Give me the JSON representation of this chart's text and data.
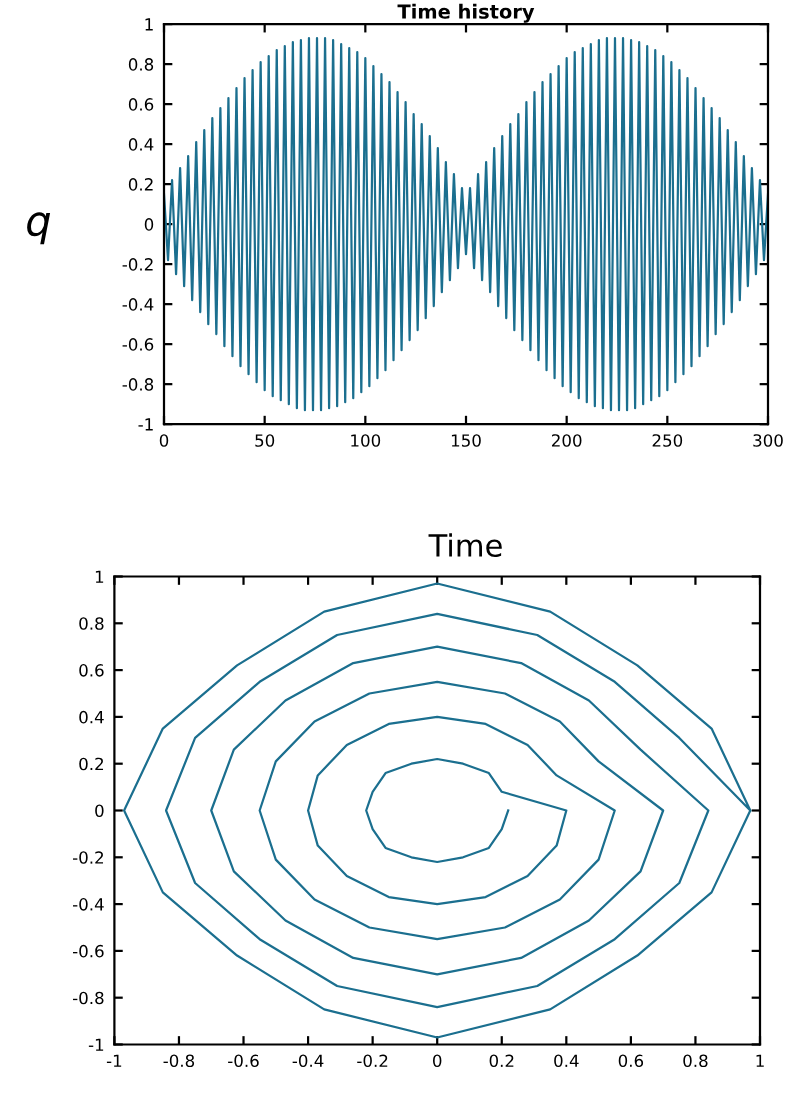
{
  "chart_data": [
    {
      "type": "line",
      "title": "Time history",
      "xlabel": "Time",
      "ylabel": "q",
      "xlim": [
        0,
        300
      ],
      "ylim": [
        -1,
        1
      ],
      "xticks": [
        0,
        50,
        100,
        150,
        200,
        250,
        300
      ],
      "yticks": [
        -1,
        -0.8,
        -0.6,
        -0.4,
        -0.2,
        0,
        0.2,
        0.4,
        0.6,
        0.8,
        1
      ],
      "x": [
        0,
        2,
        4,
        6,
        8,
        10,
        12,
        14,
        16,
        18,
        20,
        22,
        24,
        26,
        28,
        30,
        32,
        34,
        36,
        38,
        40,
        42,
        44,
        46,
        48,
        50,
        52,
        54,
        56,
        58,
        60,
        62,
        64,
        66,
        68,
        70,
        72,
        74,
        76,
        78,
        80,
        82,
        84,
        86,
        88,
        90,
        92,
        94,
        96,
        98,
        100,
        102,
        104,
        106,
        108,
        110,
        112,
        114,
        116,
        118,
        120,
        122,
        124,
        126,
        128,
        130,
        132,
        134,
        136,
        138,
        140,
        142,
        144,
        146,
        148,
        150,
        152,
        154,
        156,
        158,
        160,
        162,
        164,
        166,
        168,
        170,
        172,
        174,
        176,
        178,
        180,
        182,
        184,
        186,
        188,
        190,
        192,
        194,
        196,
        198,
        200,
        202,
        204,
        206,
        208,
        210,
        212,
        214,
        216,
        218,
        220,
        222,
        224,
        226,
        228,
        230,
        232,
        234,
        236,
        238,
        240,
        242,
        244,
        246,
        248,
        250,
        252,
        254,
        256,
        258,
        260,
        262,
        264,
        266,
        268,
        270,
        272,
        274,
        276,
        278,
        280,
        282,
        284,
        286,
        288,
        290,
        292,
        294,
        296,
        298,
        300
      ],
      "series": [
        {
          "color": "#1b6f8f",
          "values": [
            0.15,
            -0.18,
            0.22,
            -0.25,
            0.28,
            -0.31,
            0.34,
            -0.38,
            0.41,
            -0.44,
            0.47,
            -0.5,
            0.53,
            -0.55,
            0.58,
            -0.61,
            0.63,
            -0.66,
            0.68,
            -0.71,
            0.73,
            -0.75,
            0.77,
            -0.79,
            0.81,
            -0.83,
            0.84,
            -0.86,
            0.87,
            -0.88,
            0.89,
            -0.9,
            0.91,
            -0.92,
            0.92,
            -0.93,
            0.93,
            -0.93,
            0.93,
            -0.93,
            0.93,
            -0.92,
            0.92,
            -0.91,
            0.9,
            -0.89,
            0.88,
            -0.87,
            0.86,
            -0.84,
            0.83,
            -0.81,
            0.79,
            -0.77,
            0.75,
            -0.73,
            0.71,
            -0.68,
            0.66,
            -0.63,
            0.61,
            -0.58,
            0.55,
            -0.53,
            0.5,
            -0.47,
            0.44,
            -0.41,
            0.38,
            -0.34,
            0.31,
            -0.28,
            0.25,
            -0.22,
            0.18,
            -0.15,
            0.18,
            -0.22,
            0.25,
            -0.28,
            0.31,
            -0.34,
            0.38,
            -0.41,
            0.44,
            -0.47,
            0.5,
            -0.53,
            0.55,
            -0.58,
            0.61,
            -0.63,
            0.66,
            -0.68,
            0.71,
            -0.73,
            0.75,
            -0.77,
            0.79,
            -0.81,
            0.83,
            -0.84,
            0.86,
            -0.87,
            0.88,
            -0.89,
            0.9,
            -0.91,
            0.92,
            -0.92,
            0.93,
            -0.93,
            0.93,
            -0.93,
            0.93,
            -0.93,
            0.92,
            -0.92,
            0.91,
            -0.9,
            0.89,
            -0.88,
            0.87,
            -0.86,
            0.84,
            -0.83,
            0.81,
            -0.79,
            0.77,
            -0.75,
            0.73,
            -0.71,
            0.68,
            -0.66,
            0.63,
            -0.61,
            0.58,
            -0.55,
            0.53,
            -0.5,
            0.47,
            -0.44,
            0.41,
            -0.38,
            0.34,
            -0.31,
            0.28,
            -0.25,
            0.22,
            -0.18,
            0.15
          ]
        }
      ]
    },
    {
      "type": "line",
      "xlim": [
        -1,
        1
      ],
      "ylim": [
        -1,
        1
      ],
      "xticks": [
        -1,
        -0.8,
        -0.6,
        -0.4,
        -0.2,
        0,
        0.2,
        0.4,
        0.6,
        0.8,
        1
      ],
      "yticks": [
        -1,
        -0.8,
        -0.6,
        -0.4,
        -0.2,
        0,
        0.2,
        0.4,
        0.6,
        0.8,
        1
      ],
      "x": [
        0.22,
        0.2,
        0.16,
        0.08,
        0,
        -0.08,
        -0.16,
        -0.2,
        -0.22,
        -0.2,
        -0.16,
        -0.08,
        0,
        0.08,
        0.16,
        0.2,
        0.4,
        0.37,
        0.28,
        0.15,
        0,
        -0.15,
        -0.28,
        -0.37,
        -0.4,
        -0.37,
        -0.28,
        -0.15,
        0,
        0.15,
        0.28,
        0.37,
        0.55,
        0.5,
        0.38,
        0.21,
        0,
        -0.21,
        -0.38,
        -0.5,
        -0.55,
        -0.5,
        -0.38,
        -0.21,
        0,
        0.21,
        0.38,
        0.5,
        0.7,
        0.63,
        0.47,
        0.26,
        0,
        -0.26,
        -0.47,
        -0.63,
        -0.7,
        -0.63,
        -0.47,
        -0.26,
        0,
        0.26,
        0.47,
        0.63,
        0.84,
        0.75,
        0.55,
        0.31,
        0,
        -0.31,
        -0.55,
        -0.75,
        -0.84,
        -0.75,
        -0.55,
        -0.31,
        0,
        0.31,
        0.55,
        0.75,
        0.97,
        0.85,
        0.62,
        0.35,
        0,
        -0.35,
        -0.62,
        -0.85,
        -0.97,
        -0.85,
        -0.62,
        -0.35,
        0,
        0.35,
        0.62,
        0.85,
        0.97
      ],
      "series": [
        {
          "color": "#1b6f8f",
          "values": [
            0,
            -0.08,
            -0.16,
            -0.2,
            -0.22,
            -0.2,
            -0.16,
            -0.08,
            0,
            0.08,
            0.16,
            0.2,
            0.22,
            0.2,
            0.16,
            0.08,
            0,
            -0.15,
            -0.28,
            -0.37,
            -0.4,
            -0.37,
            -0.28,
            -0.15,
            0,
            0.15,
            0.28,
            0.37,
            0.4,
            0.37,
            0.28,
            0.15,
            0,
            -0.21,
            -0.38,
            -0.5,
            -0.55,
            -0.5,
            -0.38,
            -0.21,
            0,
            0.21,
            0.38,
            0.5,
            0.55,
            0.5,
            0.38,
            0.21,
            0,
            -0.26,
            -0.47,
            -0.63,
            -0.7,
            -0.63,
            -0.47,
            -0.26,
            0,
            0.26,
            0.47,
            0.63,
            0.7,
            0.63,
            0.47,
            0.26,
            0,
            -0.31,
            -0.55,
            -0.75,
            -0.84,
            -0.75,
            -0.55,
            -0.31,
            0,
            0.31,
            0.55,
            0.75,
            0.84,
            0.75,
            0.55,
            0.31,
            0,
            -0.35,
            -0.62,
            -0.85,
            -0.97,
            -0.85,
            -0.62,
            -0.35,
            0,
            0.35,
            0.62,
            0.85,
            0.97,
            0.85,
            0.62,
            0.35,
            0
          ]
        }
      ]
    }
  ]
}
